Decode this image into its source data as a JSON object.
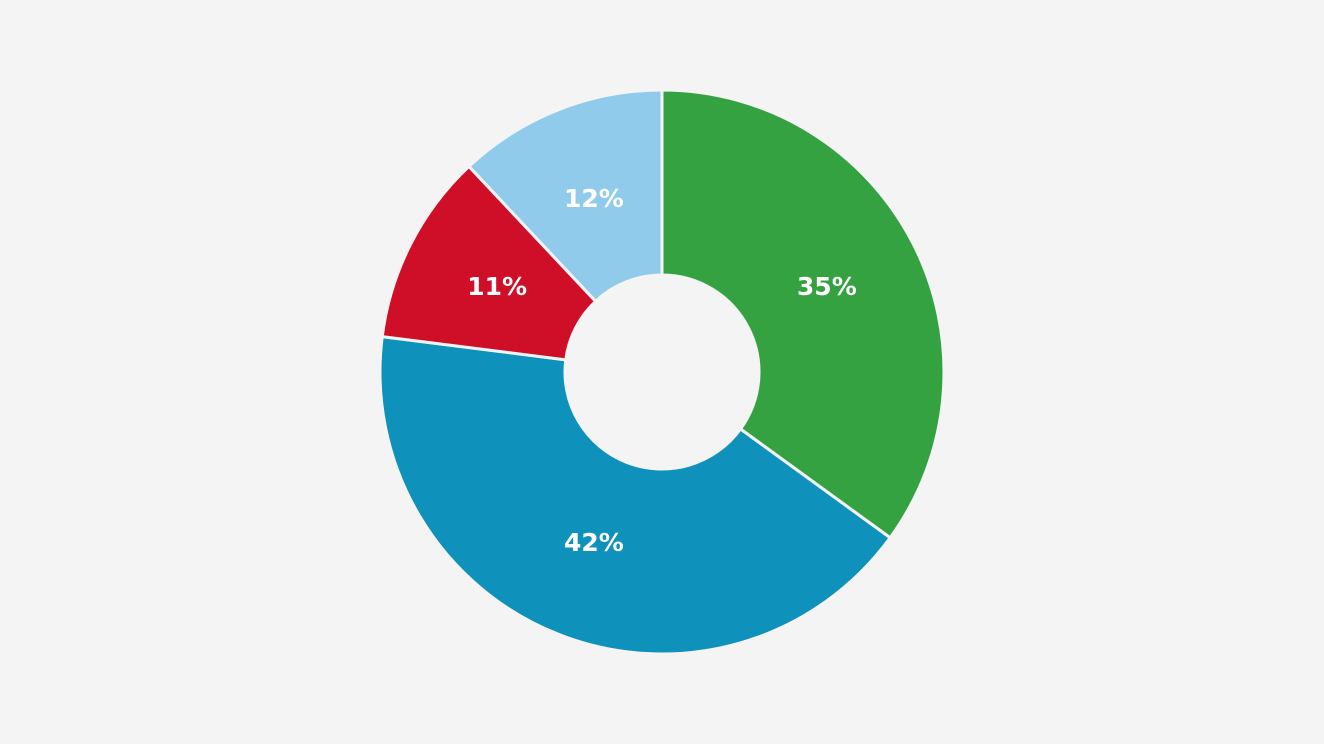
{
  "chart_data": {
    "type": "donut",
    "values": [
      35,
      42,
      11,
      12
    ],
    "value_labels": [
      "35%",
      "42%",
      "11%",
      "12%"
    ],
    "colors": [
      "#35a242",
      "#0e91bb",
      "#cf0e27",
      "#91cbec"
    ]
  }
}
